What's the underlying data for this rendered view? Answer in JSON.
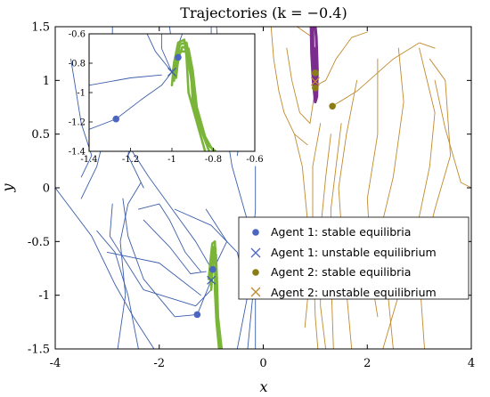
{
  "chart_data": {
    "type": "line",
    "title": "Trajectories (k = −0.4)",
    "xlabel": "x",
    "ylabel": "y",
    "xlim": [
      -4,
      4
    ],
    "ylim": [
      -1.5,
      1.5
    ],
    "xticks": [
      "-4",
      "-2",
      "0",
      "2",
      "4"
    ],
    "yticks": [
      "-1.5",
      "-1",
      "-0.5",
      "0",
      "0.5",
      "1",
      "1.5"
    ],
    "colors": {
      "agent1_curve": "#3b5eab",
      "agent1_marker": "#4a66c0",
      "agent2_curve": "#c08a2e",
      "agent2_marker": "#8a7d16",
      "attractor1": "#7ab53a",
      "attractor2": "#7a2d8c"
    },
    "legend": {
      "position": "lower-right",
      "entries": [
        "Agent 1: stable equilibria",
        "Agent 1: unstable equilibrium",
        "Agent 2: stable equilibria",
        "Agent 2: unstable equilibrium"
      ]
    },
    "series": [
      {
        "agent": "Agent 1",
        "stable_equilibria": [
          [
            -0.97,
            -0.76
          ],
          [
            -1.27,
            -1.18
          ]
        ],
        "unstable_equilibrium": [
          [
            -1.0,
            -0.86
          ]
        ]
      },
      {
        "agent": "Agent 2",
        "stable_equilibria": [
          [
            1.33,
            0.76
          ],
          [
            1.0,
            0.93
          ],
          [
            1.0,
            1.07
          ]
        ],
        "unstable_equilibrium": [
          [
            1.0,
            0.99
          ]
        ]
      }
    ],
    "inset": {
      "xlim": [
        -1.4,
        -0.6
      ],
      "ylim": [
        -1.4,
        -0.6
      ],
      "xticks": [
        "-1.4",
        "-1.2",
        "-1",
        "-0.8",
        "-0.6"
      ],
      "yticks": [
        "-0.6",
        "-0.8",
        "-1",
        "-1.2",
        "-1.4"
      ]
    }
  }
}
